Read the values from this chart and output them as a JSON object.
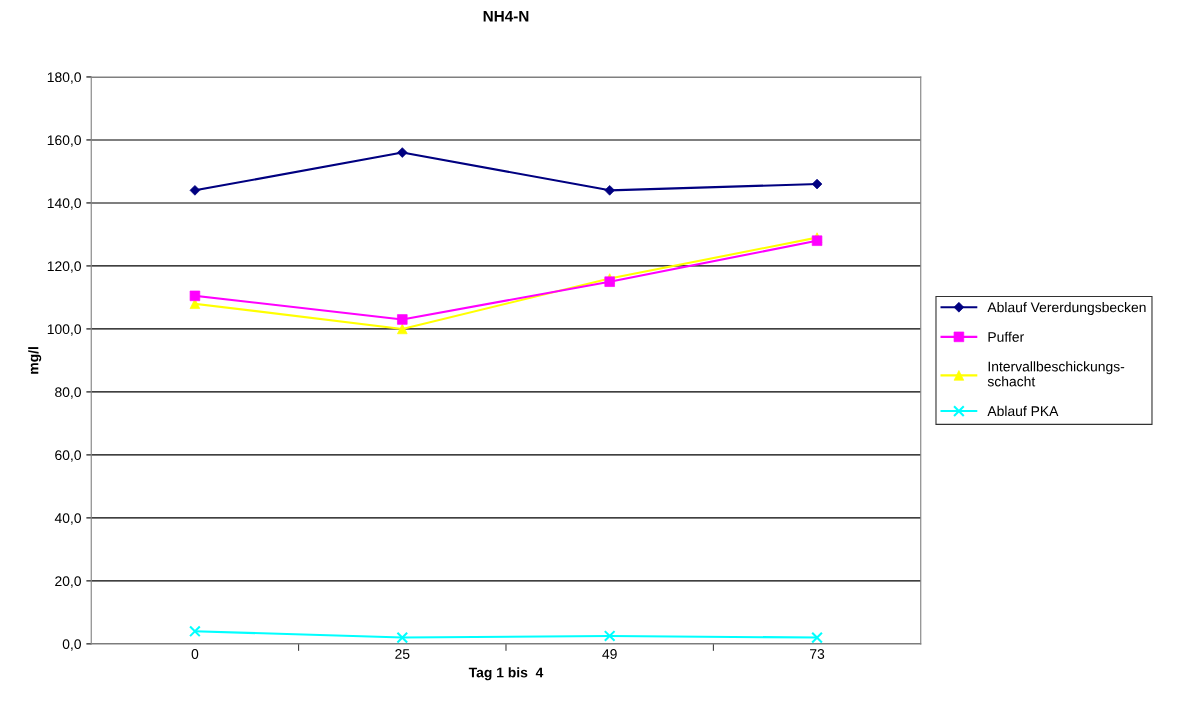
{
  "chart_data": {
    "type": "line",
    "title": "NH4-N",
    "xlabel": "Tag 1 bis  4",
    "ylabel": "mg/l",
    "categories": [
      "0",
      "25",
      "49",
      "73"
    ],
    "ylim": [
      0,
      180
    ],
    "yticks": [
      {
        "value": 0,
        "label": "0,0"
      },
      {
        "value": 20,
        "label": "20,0"
      },
      {
        "value": 40,
        "label": "40,0"
      },
      {
        "value": 60,
        "label": "60,0"
      },
      {
        "value": 80,
        "label": "80,0"
      },
      {
        "value": 100,
        "label": "100,0"
      },
      {
        "value": 120,
        "label": "120,0"
      },
      {
        "value": 140,
        "label": "140,0"
      },
      {
        "value": 160,
        "label": "160,0"
      },
      {
        "value": 180,
        "label": "180,0"
      }
    ],
    "grid": "y",
    "legend": "right",
    "series": [
      {
        "name": "Ablauf Vererdungsbecken",
        "color": "#000080",
        "marker": "diamond",
        "values": [
          144,
          156,
          144,
          146
        ]
      },
      {
        "name": "Puffer",
        "color": "#ff00ff",
        "marker": "square",
        "values": [
          110.5,
          103,
          115,
          128
        ]
      },
      {
        "name": "Intervallbeschickungs-\nschacht",
        "color": "#ffff00",
        "marker": "triangle",
        "values": [
          108,
          100,
          116,
          129
        ]
      },
      {
        "name": "Ablauf PKA",
        "color": "#00ffff",
        "marker": "cross",
        "values": [
          4,
          2,
          2.5,
          2
        ]
      }
    ]
  }
}
